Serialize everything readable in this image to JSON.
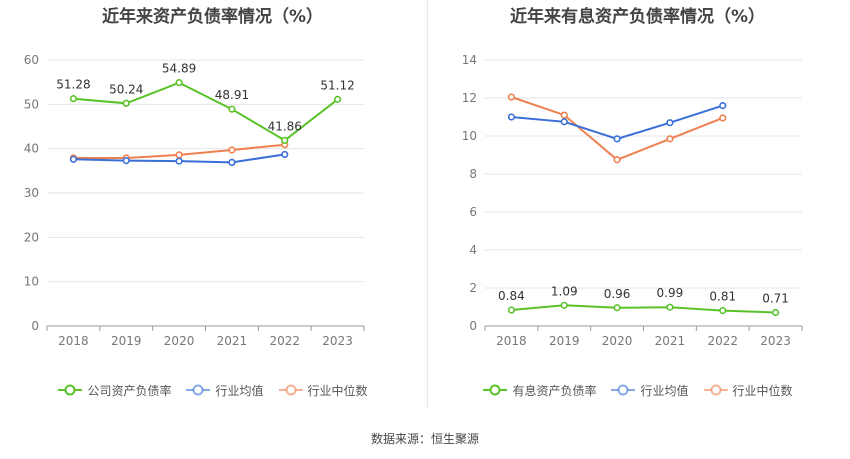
{
  "chart_data": [
    {
      "type": "line",
      "title": "近年来资产负债率情况（%）",
      "categories": [
        "2018",
        "2019",
        "2020",
        "2021",
        "2022",
        "2023"
      ],
      "ylim": [
        0,
        60
      ],
      "yticks": [
        0,
        10,
        20,
        30,
        40,
        50,
        60
      ],
      "grid": true,
      "legend_position": "bottom",
      "series": [
        {
          "name": "公司资产负债率",
          "color": "#5ac229",
          "values": [
            51.28,
            50.24,
            54.89,
            48.91,
            41.86,
            51.12
          ],
          "labels": true
        },
        {
          "name": "行业均值",
          "color": "#3a6fd8",
          "values": [
            37.6,
            37.3,
            37.2,
            36.9,
            38.7,
            null
          ],
          "labels": false
        },
        {
          "name": "行业中位数",
          "color": "#ee8050",
          "values": [
            37.9,
            37.9,
            38.6,
            39.7,
            40.9,
            null
          ],
          "labels": false
        }
      ]
    },
    {
      "type": "line",
      "title": "近年来有息资产负债率情况（%）",
      "categories": [
        "2018",
        "2019",
        "2020",
        "2021",
        "2022",
        "2023"
      ],
      "ylim": [
        0,
        14
      ],
      "yticks": [
        0,
        2,
        4,
        6,
        8,
        10,
        12,
        14
      ],
      "grid": true,
      "legend_position": "bottom",
      "series": [
        {
          "name": "有息资产负债率",
          "color": "#5ac229",
          "values": [
            0.84,
            1.09,
            0.96,
            0.99,
            0.81,
            0.71
          ],
          "labels": true
        },
        {
          "name": "行业均值",
          "color": "#3a6fd8",
          "values": [
            11.0,
            10.75,
            9.85,
            10.7,
            11.6,
            null
          ],
          "labels": false
        },
        {
          "name": "行业中位数",
          "color": "#ee8050",
          "values": [
            12.05,
            11.1,
            8.75,
            9.85,
            10.95,
            null
          ],
          "labels": false
        }
      ]
    }
  ],
  "source": "数据来源：恒生聚源"
}
